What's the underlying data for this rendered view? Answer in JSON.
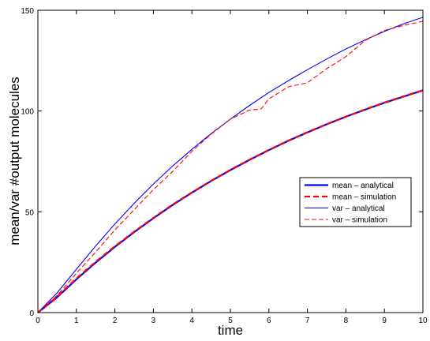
{
  "chart_data": {
    "type": "line",
    "xlabel": "time",
    "ylabel": "mean/var #output molecules",
    "xlim": [
      0,
      10
    ],
    "ylim": [
      0,
      150
    ],
    "xticks": [
      "0",
      "1",
      "2",
      "3",
      "4",
      "5",
      "6",
      "7",
      "8",
      "9",
      "10"
    ],
    "yticks": [
      "0",
      "50",
      "100",
      "150"
    ],
    "grid": false,
    "legend_position": "right",
    "colors": {
      "analytical": "#0000ff",
      "simulation": "#ff0000"
    },
    "series": [
      {
        "name": "mean – analytical",
        "color": "#0000ff",
        "style": "solid-thick",
        "x": [
          0,
          0.5,
          1,
          1.5,
          2,
          2.5,
          3,
          3.5,
          4,
          4.5,
          5,
          5.5,
          6,
          6.5,
          7,
          7.5,
          8,
          8.5,
          9,
          9.5,
          10
        ],
        "y": [
          0,
          7.6,
          16.5,
          24.8,
          32.6,
          39.9,
          46.8,
          53.4,
          59.5,
          65.3,
          70.7,
          75.8,
          80.6,
          85.2,
          89.4,
          93.4,
          97.2,
          100.7,
          104.1,
          107.2,
          110.2
        ]
      },
      {
        "name": "mean – simulation",
        "color": "#ff0000",
        "style": "dashed-thick",
        "x": [
          0,
          0.5,
          1,
          1.5,
          2,
          2.5,
          3,
          3.5,
          4,
          4.5,
          5,
          5.5,
          6,
          6.5,
          7,
          7.5,
          8,
          8.5,
          9,
          9.5,
          10
        ],
        "y": [
          0,
          7.9,
          16.9,
          25.2,
          32.9,
          40.1,
          47.0,
          53.6,
          59.6,
          65.4,
          70.8,
          75.9,
          80.7,
          85.3,
          89.5,
          93.5,
          97.2,
          100.8,
          104.2,
          107.3,
          110.3
        ]
      },
      {
        "name": "var – analytical",
        "color": "#0000ff",
        "style": "solid-thin",
        "x": [
          0,
          0.5,
          1,
          1.5,
          2,
          2.5,
          3,
          3.5,
          4,
          4.5,
          5,
          5.5,
          6,
          6.5,
          7,
          7.5,
          8,
          8.5,
          9,
          9.5,
          10
        ],
        "y": [
          0,
          9.8,
          21.5,
          33.0,
          44.0,
          54.2,
          63.8,
          72.7,
          81.0,
          88.8,
          96.0,
          102.8,
          109.2,
          115.0,
          120.5,
          125.8,
          130.8,
          135.3,
          139.5,
          143.3,
          146.5
        ]
      },
      {
        "name": "var – simulation",
        "color": "#ff0000",
        "style": "dashed-thin",
        "x": [
          0,
          0.5,
          1,
          1.5,
          2,
          2.5,
          3,
          3.5,
          4,
          4.5,
          5,
          5.5,
          5.8,
          6,
          6.5,
          7,
          7.5,
          8,
          8.5,
          9,
          9.5,
          10
        ],
        "y": [
          0,
          8.5,
          19.5,
          30.0,
          41.0,
          51.0,
          61.0,
          70.0,
          80.0,
          88.5,
          96.0,
          100.5,
          101.0,
          106.0,
          112.0,
          114.0,
          121.0,
          127.0,
          135.0,
          140.0,
          142.5,
          144.5
        ]
      }
    ]
  }
}
